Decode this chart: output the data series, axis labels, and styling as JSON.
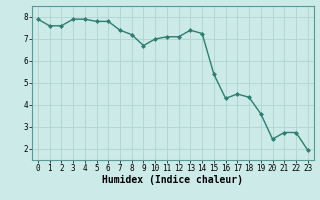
{
  "x": [
    0,
    1,
    2,
    3,
    4,
    5,
    6,
    7,
    8,
    9,
    10,
    11,
    12,
    13,
    14,
    15,
    16,
    17,
    18,
    19,
    20,
    21,
    22,
    23
  ],
  "y": [
    7.9,
    7.6,
    7.6,
    7.9,
    7.9,
    7.8,
    7.8,
    7.4,
    7.2,
    6.7,
    7.0,
    7.1,
    7.1,
    7.4,
    7.25,
    5.4,
    4.3,
    4.5,
    4.35,
    3.6,
    2.45,
    2.75,
    2.75,
    1.95
  ],
  "line_color": "#2e7d72",
  "marker": "D",
  "marker_size": 2.0,
  "background_color": "#cceae7",
  "grid_color": "#b0d4d0",
  "xlabel": "Humidex (Indice chaleur)",
  "xlabel_fontsize": 7.0,
  "ylim": [
    1.5,
    8.5
  ],
  "xlim": [
    -0.5,
    23.5
  ],
  "yticks": [
    2,
    3,
    4,
    5,
    6,
    7,
    8
  ],
  "xticks": [
    0,
    1,
    2,
    3,
    4,
    5,
    6,
    7,
    8,
    9,
    10,
    11,
    12,
    13,
    14,
    15,
    16,
    17,
    18,
    19,
    20,
    21,
    22,
    23
  ],
  "tick_fontsize": 5.5,
  "line_width": 1.0
}
